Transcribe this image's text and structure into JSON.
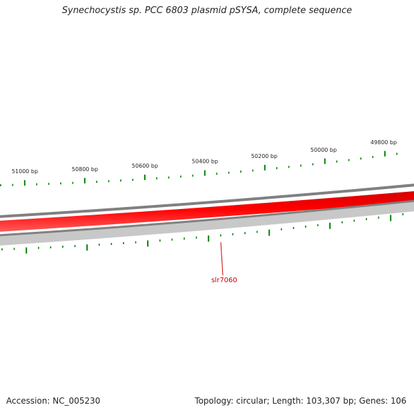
{
  "title": "Synechocystis sp. PCC 6803 plasmid pSYSA, complete sequence",
  "footer": {
    "accession": "Accession: NC_005230",
    "summary": "Topology: circular; Length: 103,307 bp; Genes: 106"
  },
  "scale_labels": [
    "51000 bp",
    "50800 bp",
    "50600 bp",
    "50400 bp",
    "50200 bp",
    "50000 bp",
    "49800 bp"
  ],
  "gene": {
    "name": "slr7060",
    "strand": "reverse"
  },
  "colors": {
    "ticks": "#008000",
    "gene_track": "#ff0000",
    "gene_label": "#cc0000",
    "backbone": "#808080",
    "lower_track": "#c8c8c8"
  }
}
